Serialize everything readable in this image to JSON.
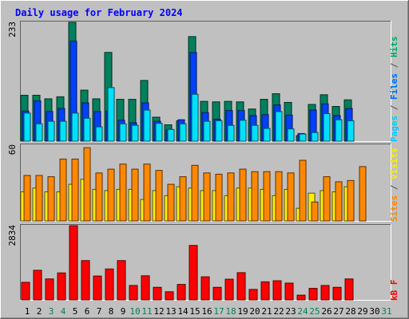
{
  "chart_data": {
    "title": "Daily usage for February 2024",
    "days": [
      "1",
      "2",
      "3",
      "4",
      "5",
      "6",
      "7",
      "8",
      "9",
      "10",
      "11",
      "12",
      "13",
      "14",
      "15",
      "16",
      "17",
      "18",
      "19",
      "20",
      "21",
      "22",
      "23",
      "24",
      "25",
      "26",
      "27",
      "28",
      "29",
      "30",
      "31"
    ],
    "weekend_days": [
      "3",
      "4",
      "10",
      "11",
      "17",
      "18",
      "24",
      "25",
      "31"
    ],
    "panels": [
      {
        "id": "pages-files-hits",
        "type": "bar",
        "ylim": [
          0,
          233
        ],
        "y_tick_label": "233",
        "right_label_parts": [
          {
            "text": "Pages",
            "color": "#00ccff"
          },
          {
            "text": " / ",
            "color": "#555555"
          },
          {
            "text": "Files",
            "color": "#0066ff"
          },
          {
            "text": " / ",
            "color": "#555555"
          },
          {
            "text": "Hits",
            "color": "#00aa66"
          }
        ],
        "series": [
          {
            "name": "Hits",
            "color": "#00805c",
            "values": [
              90,
              90,
              83,
              87,
              233,
              100,
              83,
              174,
              82,
              82,
              119,
              47,
              32,
              40,
              205,
              78,
              77,
              78,
              77,
              63,
              82,
              93,
              76,
              11,
              72,
              91,
              68,
              81,
              null,
              null,
              null
            ]
          },
          {
            "name": "Files",
            "color": "#0040ff",
            "values": [
              59,
              79,
              58,
              64,
              196,
              75,
              58,
              59,
              41,
              36,
              75,
              39,
              22,
              42,
              174,
              56,
              43,
              60,
              60,
              50,
              52,
              71,
              51,
              15,
              61,
              73,
              50,
              64,
              null,
              null,
              null
            ]
          },
          {
            "name": "Pages",
            "color": "#00e0ff",
            "values": [
              55,
              34,
              39,
              39,
              55,
              45,
              28,
              105,
              34,
              31,
              61,
              35,
              23,
              34,
              92,
              39,
              40,
              31,
              41,
              31,
              25,
              58,
              24,
              14,
              17,
              54,
              42,
              40,
              null,
              null,
              null
            ]
          }
        ]
      },
      {
        "id": "sites-visits",
        "type": "bar",
        "ylim": [
          0,
          60
        ],
        "y_tick_label": "60",
        "right_label_parts": [
          {
            "text": "Sites",
            "color": "#ff8800"
          },
          {
            "text": " / ",
            "color": "#555555"
          },
          {
            "text": "Visits",
            "color": "#ffee00"
          }
        ],
        "series": [
          {
            "name": "Visits",
            "color": "#ffee00",
            "values": [
              23,
              26,
              23,
              23,
              29,
              33,
              25,
              24,
              25,
              25,
              17,
              24,
              20,
              27,
              26,
              24,
              24,
              20,
              26,
              26,
              25,
              20,
              25,
              10,
              22,
              24,
              23,
              27,
              null,
              null,
              null
            ]
          },
          {
            "name": "Sites",
            "color": "#ff8800",
            "values": [
              36,
              36,
              35,
              49,
              49,
              58,
              38,
              41,
              45,
              41,
              45,
              40,
              29,
              35,
              44,
              38,
              37,
              38,
              41,
              39,
              39,
              39,
              38,
              48,
              15,
              35,
              31,
              32,
              43,
              null,
              null
            ]
          }
        ]
      },
      {
        "id": "kb-f",
        "type": "bar",
        "ylim": [
          0,
          2834
        ],
        "y_tick_label": "2834",
        "right_label_parts": [
          {
            "text": "kB F",
            "color": "#ff0000"
          }
        ],
        "series": [
          {
            "name": "kB F",
            "color": "#ff0000",
            "values": [
              670,
              1130,
              800,
              1030,
              2834,
              1500,
              910,
              1180,
              1500,
              550,
              920,
              480,
              310,
              590,
              2080,
              880,
              480,
              790,
              1040,
              400,
              690,
              730,
              640,
              180,
              440,
              550,
              480,
              800,
              null,
              null,
              null
            ]
          }
        ]
      }
    ]
  }
}
